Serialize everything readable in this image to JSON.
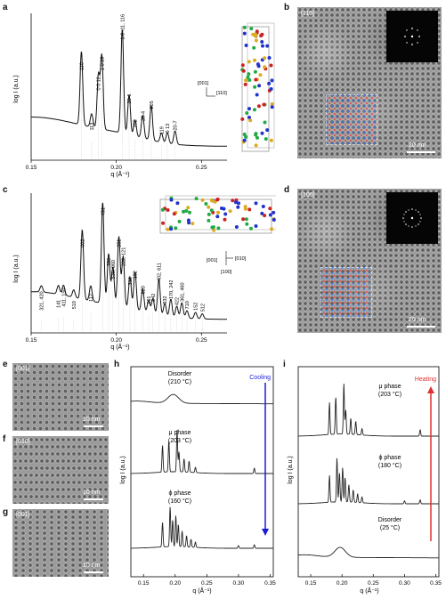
{
  "panels": {
    "a": {
      "letter": "a",
      "ylabel": "log I (a.u.)",
      "xlabel": "q (Å⁻¹)",
      "xticks": [
        "0.15",
        "0.20",
        "0.25"
      ],
      "peaks": [
        {
          "q": 0.1795,
          "h": 0.55,
          "label": "110"
        },
        {
          "q": 0.1855,
          "h": 0.1,
          "label": "113"
        },
        {
          "q": 0.1895,
          "h": 0.4,
          "label": "0 0 12"
        },
        {
          "q": 0.1915,
          "h": 0.55,
          "label": "1 0 10"
        },
        {
          "q": 0.2035,
          "h": 0.78,
          "label": "1 0 -11, 116"
        },
        {
          "q": 0.2075,
          "h": 0.3,
          "label": "20-1"
        },
        {
          "q": 0.211,
          "h": 0.12,
          "label": "202"
        },
        {
          "q": 0.2155,
          "h": 0.17,
          "label": "20-4"
        },
        {
          "q": 0.2205,
          "h": 0.26,
          "label": "205"
        },
        {
          "q": 0.2265,
          "h": 0.07,
          "label": "119"
        },
        {
          "q": 0.23,
          "h": 0.08,
          "label": "0 13"
        },
        {
          "q": 0.2345,
          "h": 0.1,
          "label": "20-7"
        }
      ],
      "axes_label": "[001] [110]"
    },
    "b": {
      "letter": "b",
      "zone": "[110]",
      "scale": "20 nm"
    },
    "c": {
      "letter": "c",
      "ylabel": "log I (a.u.)",
      "xlabel": "q (Å⁻¹)",
      "xticks": [
        "0.15",
        "0.20",
        "0.25"
      ],
      "peaks": [
        {
          "q": 0.156,
          "h": 0.05,
          "label": "321, 420"
        },
        {
          "q": 0.166,
          "h": 0.07,
          "label": "141"
        },
        {
          "q": 0.169,
          "h": 0.08,
          "label": "411, 150"
        },
        {
          "q": 0.175,
          "h": 0.06,
          "label": "510"
        },
        {
          "q": 0.18,
          "h": 0.55,
          "label": "002"
        },
        {
          "q": 0.185,
          "h": 0.12,
          "label": "112"
        },
        {
          "q": 0.192,
          "h": 0.8,
          "label": "431"
        },
        {
          "q": 0.1955,
          "h": 0.4,
          "label": "350"
        },
        {
          "q": 0.198,
          "h": 0.3,
          "label": "530, 060"
        },
        {
          "q": 0.2015,
          "h": 0.55,
          "label": "251"
        },
        {
          "q": 0.204,
          "h": 0.4,
          "label": "222, 121"
        },
        {
          "q": 0.208,
          "h": 0.25,
          "label": "312"
        },
        {
          "q": 0.211,
          "h": 0.3,
          "label": "132"
        },
        {
          "q": 0.2155,
          "h": 0.18,
          "label": "620"
        },
        {
          "q": 0.219,
          "h": 0.1,
          "label": "161"
        },
        {
          "q": 0.2215,
          "h": 0.12,
          "label": "242"
        },
        {
          "q": 0.225,
          "h": 0.28,
          "label": "402, 611"
        },
        {
          "q": 0.2285,
          "h": 0.1,
          "label": "332"
        },
        {
          "q": 0.232,
          "h": 0.14,
          "label": "170, 242"
        },
        {
          "q": 0.2355,
          "h": 0.09,
          "label": "422"
        },
        {
          "q": 0.2385,
          "h": 0.12,
          "label": "361, 460"
        },
        {
          "q": 0.2415,
          "h": 0.06,
          "label": "710"
        },
        {
          "q": 0.2465,
          "h": 0.05,
          "label": "152"
        },
        {
          "q": 0.2505,
          "h": 0.04,
          "label": "512"
        }
      ],
      "axes_label_1": "[001]",
      "axes_label_2": "[010]",
      "axes_label_3": "[100]"
    },
    "d": {
      "letter": "d",
      "zone": "[100]",
      "scale": "20 nm"
    },
    "e": {
      "letter": "e",
      "zone": "[001]",
      "scale": "10 nm"
    },
    "f": {
      "letter": "f",
      "zone": "[010]",
      "scale": "10 nm"
    },
    "g": {
      "letter": "g",
      "zone": "[001]",
      "scale": "10 nm"
    },
    "h": {
      "letter": "h",
      "ylabel": "log I (a.u.)",
      "xlabel": "q (Å⁻¹)",
      "xticks": [
        "0.15",
        "0.20",
        "0.25",
        "0.30",
        "0.35"
      ],
      "arrow_label": "Cooling",
      "arrow_color": "#1a1adb",
      "traces": [
        {
          "name": "Disorder\n(210 °C)",
          "line1": "Disorder",
          "line2": "(210 °C)"
        },
        {
          "name": "μ phase\n(203 °C)",
          "line1": "μ phase",
          "line2": "(203 °C)"
        },
        {
          "name": "ϕ phase\n(160 °C)",
          "line1": "ϕ phase",
          "line2": "(160 °C)"
        }
      ]
    },
    "i": {
      "letter": "i",
      "ylabel": "log I (a.u.)",
      "xlabel": "q (Å⁻¹)",
      "xticks": [
        "0.15",
        "0.20",
        "0.25",
        "0.30",
        "0.35"
      ],
      "arrow_label": "Heating",
      "arrow_color": "#e03030",
      "traces": [
        {
          "line1": "μ phase",
          "line2": "(203 °C)"
        },
        {
          "line1": "ϕ phase",
          "line2": "(180 °C)"
        },
        {
          "line1": "Disorder",
          "line2": "(25 °C)"
        }
      ]
    }
  }
}
